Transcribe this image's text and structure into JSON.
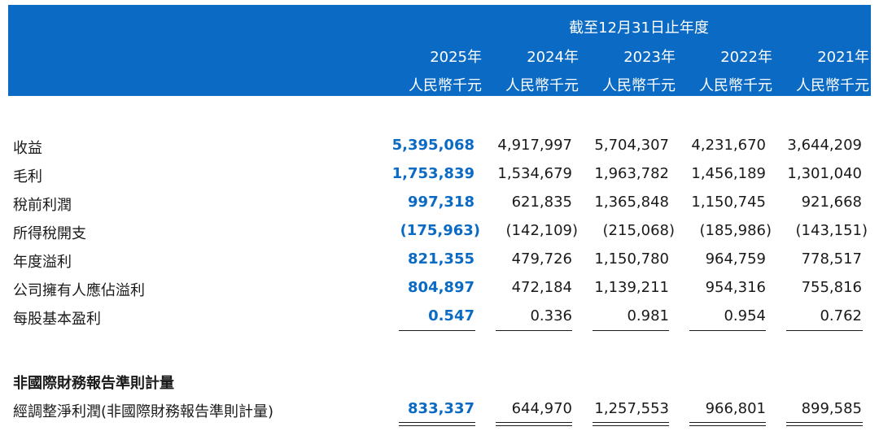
{
  "header": {
    "period": "截至12月31日止年度",
    "years": [
      "2025年",
      "2024年",
      "2023年",
      "2022年",
      "2021年"
    ],
    "units": [
      "人民幣千元",
      "人民幣千元",
      "人民幣千元",
      "人民幣千元",
      "人民幣千元"
    ]
  },
  "rows": [
    {
      "label": "收益",
      "values": [
        "5,395,068",
        "4,917,997",
        "5,704,307",
        "4,231,670",
        "3,644,209"
      ]
    },
    {
      "label": "毛利",
      "values": [
        "1,753,839",
        "1,534,679",
        "1,963,782",
        "1,456,189",
        "1,301,040"
      ]
    },
    {
      "label": "稅前利潤",
      "values": [
        "997,318",
        "621,835",
        "1,365,848",
        "1,150,745",
        "921,668"
      ]
    },
    {
      "label": "所得稅開支",
      "values": [
        "(175,963)",
        "(142,109)",
        "(215,068)",
        "(185,986)",
        "(143,151)"
      ]
    },
    {
      "label": "年度溢利",
      "values": [
        "821,355",
        "479,726",
        "1,150,780",
        "964,759",
        "778,517"
      ]
    },
    {
      "label": "公司擁有人應佔溢利",
      "values": [
        "804,897",
        "472,184",
        "1,139,211",
        "954,316",
        "755,816"
      ]
    },
    {
      "label": "每股基本盈利",
      "values": [
        "0.547",
        "0.336",
        "0.981",
        "0.954",
        "0.762"
      ]
    }
  ],
  "non_ifrs": {
    "title": "非國際財務報告準則計量",
    "label": "經調整淨利潤(非國際財務報告準則計量)",
    "values": [
      "833,337",
      "644,970",
      "1,257,553",
      "966,801",
      "899,585"
    ]
  },
  "colors": {
    "header_bg": "#0b6ac3",
    "highlight": "#0b6ac3",
    "text": "#1a1a1a"
  }
}
